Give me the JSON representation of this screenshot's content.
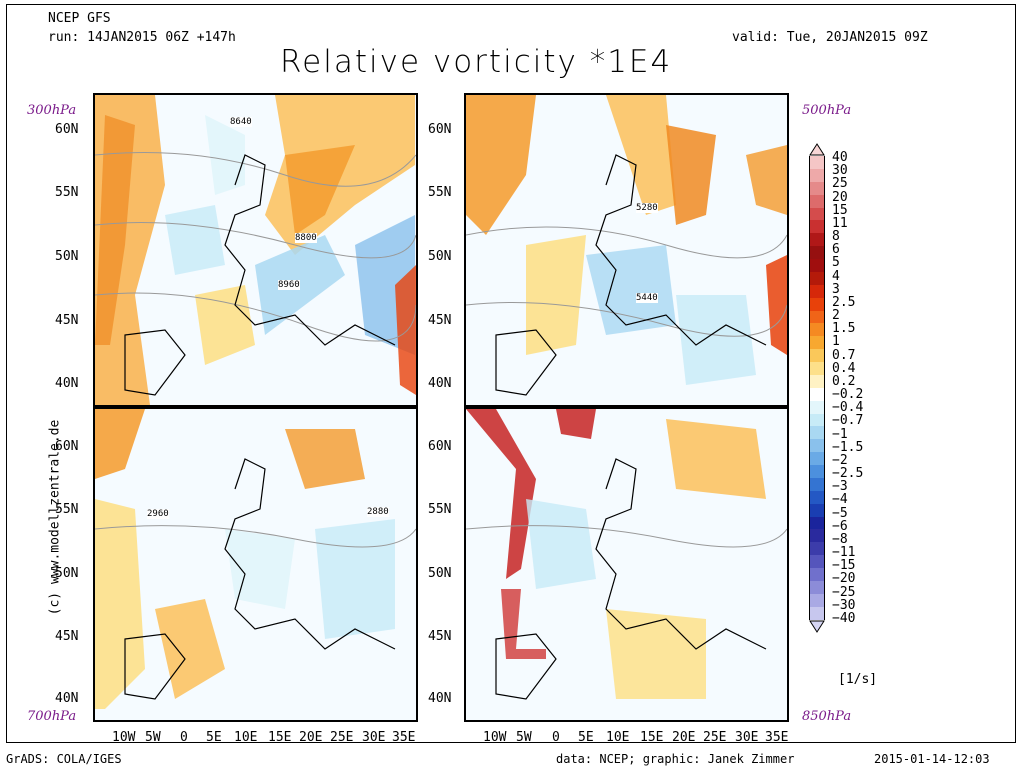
{
  "header": {
    "model": "NCEP GFS",
    "run": "run: 14JAN2015 06Z +147h",
    "valid": "valid: Tue, 20JAN2015 09Z",
    "title": "Relative vorticity *1E4"
  },
  "panels": {
    "top_left_level": "300hPa",
    "top_right_level": "500hPa",
    "bottom_left_level": "700hPa",
    "bottom_right_level": "850hPa"
  },
  "contour_labels": {
    "tl_a": "8640",
    "tl_b": "8800",
    "tl_c": "8960",
    "tr_a": "5280",
    "tr_b": "5440",
    "bl_a": "2960",
    "bl_b": "2880"
  },
  "lat_labels": [
    "60N",
    "55N",
    "50N",
    "45N",
    "40N"
  ],
  "lon_labels": [
    "10W",
    "5W",
    "0",
    "5E",
    "10E",
    "15E",
    "20E",
    "25E",
    "30E",
    "35E"
  ],
  "side_text": "(c) www.modellzentrale.de",
  "colorbar": {
    "labels": [
      "40",
      "30",
      "25",
      "20",
      "15",
      "11",
      "8",
      "6",
      "5",
      "4",
      "3",
      "2.5",
      "2",
      "1.5",
      "1",
      "0.7",
      "0.4",
      "0.2",
      "−0.2",
      "−0.4",
      "−0.7",
      "−1",
      "−1.5",
      "−2",
      "−2.5",
      "−3",
      "−4",
      "−5",
      "−6",
      "−8",
      "−11",
      "−15",
      "−20",
      "−25",
      "−30",
      "−40"
    ],
    "colors": [
      "#f5c6c6",
      "#eea9a9",
      "#e58a8a",
      "#dd6b6b",
      "#d44c4c",
      "#c93030",
      "#b01818",
      "#961010",
      "#a00e0e",
      "#b41a0a",
      "#d6280a",
      "#e8410a",
      "#f06418",
      "#f58a22",
      "#f8a830",
      "#fac85a",
      "#fde08a",
      "#fff2c4",
      "#ffffff",
      "#e3f6fb",
      "#c7ebf7",
      "#a9d8f2",
      "#8ac1ec",
      "#6aaae6",
      "#4c90de",
      "#3474d2",
      "#2458c4",
      "#1a3eb2",
      "#1a249c",
      "#2a2a9e",
      "#3c3caa",
      "#5555bc",
      "#7070cc",
      "#8c8cd8",
      "#a9a9e4",
      "#c7c7ee"
    ],
    "unit": "[1/s]"
  },
  "footer": {
    "left": "GrADS: COLA/IGES",
    "middle": "data: NCEP; graphic: Janek Zimmer",
    "right": "2015-01-14-12:03"
  }
}
